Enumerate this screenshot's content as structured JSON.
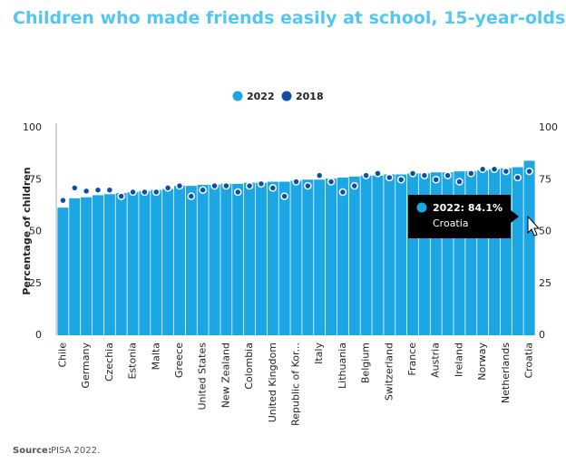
{
  "chart_data": {
    "type": "bar",
    "title": "Children who made friends easily at school, 15-year-olds",
    "y_label": "Percentage of children",
    "categories": [
      "Chile",
      null,
      "Germany",
      null,
      "Czechia",
      null,
      "Estonia",
      null,
      "Malta",
      null,
      "Greece",
      null,
      "United States",
      null,
      "New Zealand",
      null,
      "Colombia",
      null,
      "United Kingdom",
      null,
      "Republic of Kor...",
      null,
      "Italy",
      null,
      "Lithuania",
      null,
      "Belgium",
      null,
      "Switzerland",
      null,
      "France",
      null,
      "Austria",
      null,
      "Ireland",
      null,
      "Norway",
      null,
      "Netherlands",
      null,
      "Croatia"
    ],
    "series": [
      {
        "name": "2022",
        "color": "#1ca6e3",
        "mark": "bar",
        "values": [
          61.5,
          66,
          66.5,
          67.5,
          68,
          68.5,
          69,
          69.5,
          70,
          70.5,
          72,
          72,
          72.5,
          72.5,
          73,
          73,
          73.5,
          73.5,
          74,
          74,
          74.5,
          75,
          75,
          75.5,
          76,
          76.5,
          77,
          77,
          77.5,
          77.5,
          78,
          78,
          78.5,
          78.5,
          79,
          79,
          79.5,
          80,
          80.5,
          81,
          84.1
        ]
      },
      {
        "name": "2018",
        "color": "#0d4fa3",
        "mark": "dot",
        "values": [
          65,
          71,
          69.5,
          70,
          70,
          67,
          69,
          69,
          69,
          71,
          72,
          67,
          70,
          72,
          72,
          69,
          72,
          73,
          71,
          67,
          74,
          72,
          77,
          74,
          69,
          72,
          77,
          78,
          76,
          75,
          78,
          77,
          75,
          77,
          74,
          78,
          80,
          80,
          79,
          76,
          79
        ]
      }
    ],
    "ylim": [
      0,
      100
    ],
    "yticks": [
      0,
      25,
      50,
      75,
      100
    ],
    "right_axis_labels": true,
    "legend": "top",
    "tooltip": {
      "text": "2022: 84.1%",
      "category": "Croatia"
    },
    "source": {
      "label": "Source:",
      "text": "PISA 2022."
    }
  }
}
